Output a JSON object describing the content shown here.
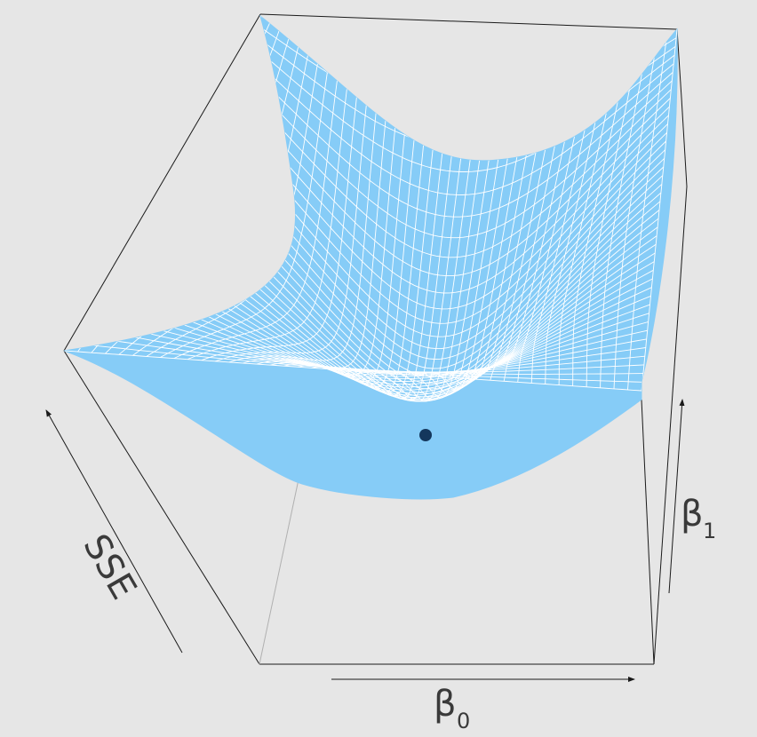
{
  "figure": {
    "axes": {
      "x": {
        "label": "β",
        "subscript": "0"
      },
      "y": {
        "label": "β",
        "subscript": "1"
      },
      "z": {
        "label": "SSE"
      }
    },
    "surface": {
      "type": "quadratic bowl",
      "grid": true
    },
    "minimum_marker": {
      "shown": true
    }
  },
  "colors": {
    "background": "#e6e6e6",
    "surface": "#86ccf7",
    "grid_lines": "#ffffff",
    "box_edges": "#1a1a1a",
    "hidden_edge": "#b0b0b0",
    "minimum_point": "#14375c",
    "label_text": "#3a3a3a"
  }
}
